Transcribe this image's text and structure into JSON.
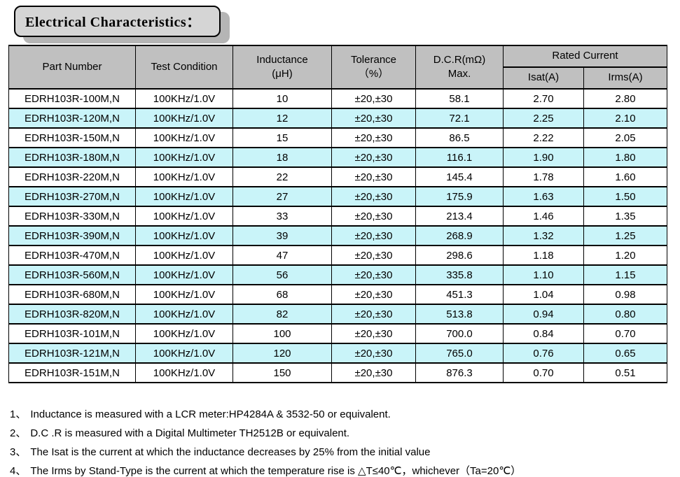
{
  "title": "Electrical Characteristics：",
  "table": {
    "headers": {
      "part_number": "Part Number",
      "test_condition": "Test Condition",
      "inductance_line1": "Inductance",
      "inductance_line2": "(μH)",
      "tolerance_line1": "Tolerance",
      "tolerance_line2": "（%）",
      "dcr_line1": "D.C.R(mΩ)",
      "dcr_line2": "Max.",
      "rated_current": "Rated Current",
      "isat": "Isat(A)",
      "irms": "Irms(A)"
    },
    "rows": [
      {
        "part": "EDRH103R-100M,N",
        "cond": "100KHz/1.0V",
        "uh": "10",
        "tol": "±20,±30",
        "dcr": "58.1",
        "isat": "2.70",
        "irms": "2.80"
      },
      {
        "part": "EDRH103R-120M,N",
        "cond": "100KHz/1.0V",
        "uh": "12",
        "tol": "±20,±30",
        "dcr": "72.1",
        "isat": "2.25",
        "irms": "2.10"
      },
      {
        "part": "EDRH103R-150M,N",
        "cond": "100KHz/1.0V",
        "uh": "15",
        "tol": "±20,±30",
        "dcr": "86.5",
        "isat": "2.22",
        "irms": "2.05"
      },
      {
        "part": "EDRH103R-180M,N",
        "cond": "100KHz/1.0V",
        "uh": "18",
        "tol": "±20,±30",
        "dcr": "116.1",
        "isat": "1.90",
        "irms": "1.80"
      },
      {
        "part": "EDRH103R-220M,N",
        "cond": "100KHz/1.0V",
        "uh": "22",
        "tol": "±20,±30",
        "dcr": "145.4",
        "isat": "1.78",
        "irms": "1.60"
      },
      {
        "part": "EDRH103R-270M,N",
        "cond": "100KHz/1.0V",
        "uh": "27",
        "tol": "±20,±30",
        "dcr": "175.9",
        "isat": "1.63",
        "irms": "1.50"
      },
      {
        "part": "EDRH103R-330M,N",
        "cond": "100KHz/1.0V",
        "uh": "33",
        "tol": "±20,±30",
        "dcr": "213.4",
        "isat": "1.46",
        "irms": "1.35"
      },
      {
        "part": "EDRH103R-390M,N",
        "cond": "100KHz/1.0V",
        "uh": "39",
        "tol": "±20,±30",
        "dcr": "268.9",
        "isat": "1.32",
        "irms": "1.25"
      },
      {
        "part": "EDRH103R-470M,N",
        "cond": "100KHz/1.0V",
        "uh": "47",
        "tol": "±20,±30",
        "dcr": "298.6",
        "isat": "1.18",
        "irms": "1.20"
      },
      {
        "part": "EDRH103R-560M,N",
        "cond": "100KHz/1.0V",
        "uh": "56",
        "tol": "±20,±30",
        "dcr": "335.8",
        "isat": "1.10",
        "irms": "1.15"
      },
      {
        "part": "EDRH103R-680M,N",
        "cond": "100KHz/1.0V",
        "uh": "68",
        "tol": "±20,±30",
        "dcr": "451.3",
        "isat": "1.04",
        "irms": "0.98"
      },
      {
        "part": "EDRH103R-820M,N",
        "cond": "100KHz/1.0V",
        "uh": "82",
        "tol": "±20,±30",
        "dcr": "513.8",
        "isat": "0.94",
        "irms": "0.80"
      },
      {
        "part": "EDRH103R-101M,N",
        "cond": "100KHz/1.0V",
        "uh": "100",
        "tol": "±20,±30",
        "dcr": "700.0",
        "isat": "0.84",
        "irms": "0.70"
      },
      {
        "part": "EDRH103R-121M,N",
        "cond": "100KHz/1.0V",
        "uh": "120",
        "tol": "±20,±30",
        "dcr": "765.0",
        "isat": "0.76",
        "irms": "0.65"
      },
      {
        "part": "EDRH103R-151M,N",
        "cond": "100KHz/1.0V",
        "uh": "150",
        "tol": "±20,±30",
        "dcr": "876.3",
        "isat": "0.70",
        "irms": "0.51"
      }
    ]
  },
  "notes": [
    {
      "num": "1、",
      "text": "Inductance is measured with a LCR meter:HP4284A & 3532-50 or equivalent."
    },
    {
      "num": "2、",
      "text": "D.C .R is measured with a Digital Multimeter TH2512B or equivalent."
    },
    {
      "num": "3、",
      "text": "The Isat is the current at which the inductance decreases by 25% from the initial value"
    },
    {
      "num": "4、",
      "text": "The Irms by Stand-Type is the current at which the temperature rise is △T≤40℃，whichever（Ta=20℃）"
    }
  ],
  "colors": {
    "header_bg": "#c0c0c0",
    "row_alt_bg": "#c9f4f9",
    "title_bg": "#d5d5d5",
    "title_shadow": "#b5b5b5",
    "border_color": "#000000"
  }
}
